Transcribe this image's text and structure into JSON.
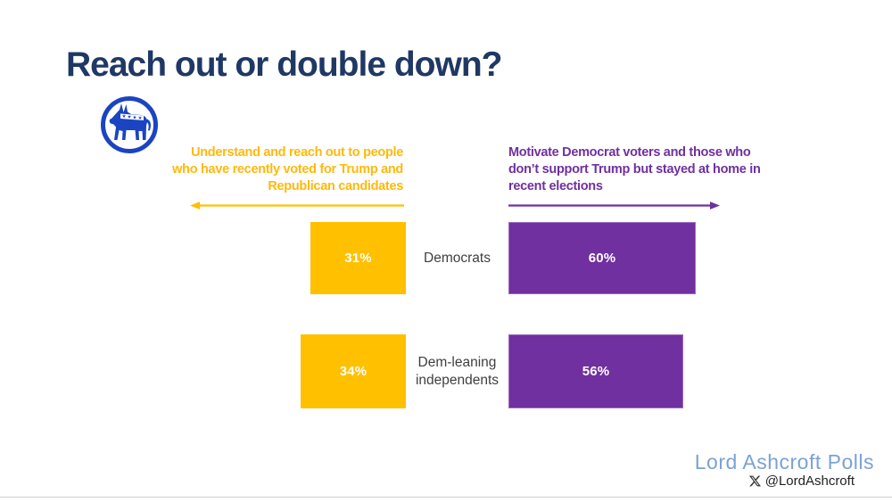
{
  "slide": {
    "title": "Reach out or double down?",
    "footer": {
      "brand": "Lord Ashcroft Polls",
      "handle": "@LordAshcroft"
    }
  },
  "strategies": {
    "left": {
      "lines": [
        "Understand and reach out to people",
        "who have recently voted for Trump and",
        "Republican candidates"
      ],
      "color": "#FFC000",
      "arrow_direction": "left"
    },
    "right": {
      "lines": [
        "Motivate Democrat voters and those who",
        "don’t support Trump but stayed at home in",
        "recent elections"
      ],
      "color": "#7030A0",
      "arrow_direction": "right"
    }
  },
  "icons": {
    "party": "democrat-donkey-icon",
    "social": "x-logo-icon"
  },
  "colors": {
    "title": "#1F3864",
    "gold": "#FFC000",
    "purple": "#7030A0",
    "purple_border": "#9B6BC0",
    "donkey_blue": "#1A44C2",
    "brand_blue": "#7BA2D6",
    "category_text": "#3F3F3F",
    "divider": "#CFCFCF"
  },
  "chart_data": {
    "type": "bar",
    "orientation": "horizontal-diverging",
    "categories": [
      "Democrats",
      "Dem-leaning independents"
    ],
    "category_lines": [
      [
        "Democrats"
      ],
      [
        "Dem-leaning",
        "independents"
      ]
    ],
    "series": [
      {
        "name": "Understand and reach out to people who have recently voted for Trump and Republican candidates",
        "color": "#FFC000",
        "values": [
          31,
          34
        ]
      },
      {
        "name": "Motivate Democrat voters and those who don’t support Trump but stayed at home in recent elections",
        "color": "#7030A0",
        "values": [
          60,
          56
        ]
      }
    ],
    "value_labels": [
      [
        "31%",
        "60%"
      ],
      [
        "34%",
        "56%"
      ]
    ],
    "value_format": "percent",
    "xlim": [
      0,
      100
    ],
    "grid": false,
    "legend_position": "top-as-annotations"
  }
}
